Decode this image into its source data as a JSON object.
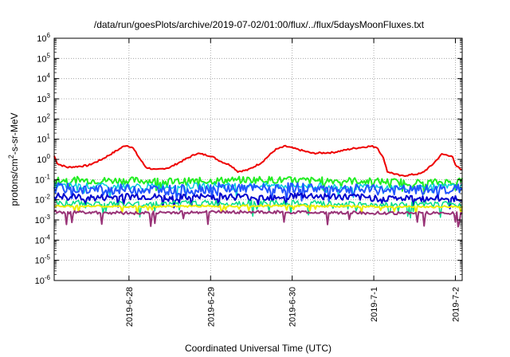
{
  "chart_data": {
    "type": "line",
    "title": "/data/run/goesPlots/archive/2019-07-02/01:00/flux/../flux/5daysMoonFluxes.txt",
    "xlabel": "Coordinated Universal Time (UTC)",
    "ylabel_parts": [
      "protons/cm",
      "2",
      "-s-sr-MeV"
    ],
    "yscale": "log",
    "ylim_exp": [
      -6,
      6
    ],
    "y_ticks": [
      {
        "base": "10",
        "exp": "-6"
      },
      {
        "base": "10",
        "exp": "-5"
      },
      {
        "base": "10",
        "exp": "-4"
      },
      {
        "base": "10",
        "exp": "-3"
      },
      {
        "base": "10",
        "exp": "-2"
      },
      {
        "base": "10",
        "exp": "-1"
      },
      {
        "base": "10",
        "exp": "0"
      },
      {
        "base": "10",
        "exp": "1"
      },
      {
        "base": "10",
        "exp": "2"
      },
      {
        "base": "10",
        "exp": "3"
      },
      {
        "base": "10",
        "exp": "4"
      },
      {
        "base": "10",
        "exp": "5"
      },
      {
        "base": "10",
        "exp": "6"
      }
    ],
    "xlim_days": [
      "2019-06-27 02:00",
      "2019-07-02 02:00"
    ],
    "x_ticks": [
      "2019-6-28",
      "2019-6-29",
      "2019-6-30",
      "2019-7-1",
      "2019-7-2"
    ],
    "x_tick_dates": [
      "2019-06-28",
      "2019-06-29",
      "2019-06-30",
      "2019-07-01",
      "2019-07-02"
    ],
    "grid": true,
    "legend": "none",
    "series": [
      {
        "color": "#ee0000",
        "width": 2,
        "noise": 0.08,
        "points": [
          [
            "2019-06-27 02:00",
            1.5
          ],
          [
            "2019-06-27 03:00",
            0.6
          ],
          [
            "2019-06-27 06:00",
            0.4
          ],
          [
            "2019-06-27 12:00",
            0.5
          ],
          [
            "2019-06-27 16:00",
            1.0
          ],
          [
            "2019-06-27 20:00",
            2.5
          ],
          [
            "2019-06-27 23:00",
            5.0
          ],
          [
            "2019-06-28 01:00",
            4.0
          ],
          [
            "2019-06-28 03:00",
            1.2
          ],
          [
            "2019-06-28 05:00",
            0.4
          ],
          [
            "2019-06-28 08:00",
            0.3
          ],
          [
            "2019-06-28 12:00",
            0.4
          ],
          [
            "2019-06-28 16:00",
            0.9
          ],
          [
            "2019-06-28 20:00",
            2.0
          ],
          [
            "2019-06-29 00:00",
            1.5
          ],
          [
            "2019-06-29 03:00",
            0.8
          ],
          [
            "2019-06-29 06:00",
            0.5
          ],
          [
            "2019-06-29 08:00",
            0.25
          ],
          [
            "2019-06-29 11:00",
            0.3
          ],
          [
            "2019-06-29 15:00",
            0.7
          ],
          [
            "2019-06-29 19:00",
            3.0
          ],
          [
            "2019-06-29 22:00",
            4.5
          ],
          [
            "2019-06-30 02:00",
            3.0
          ],
          [
            "2019-06-30 06:00",
            2.0
          ],
          [
            "2019-06-30 12:00",
            2.2
          ],
          [
            "2019-06-30 18:00",
            3.5
          ],
          [
            "2019-06-30 23:00",
            4.5
          ],
          [
            "2019-07-01 01:00",
            4.0
          ],
          [
            "2019-07-01 03:00",
            1.0
          ],
          [
            "2019-07-01 04:00",
            0.25
          ],
          [
            "2019-07-01 08:00",
            0.15
          ],
          [
            "2019-07-01 14:00",
            0.2
          ],
          [
            "2019-07-01 17:00",
            0.5
          ],
          [
            "2019-07-01 20:00",
            1.8
          ],
          [
            "2019-07-01 23:00",
            1.5
          ],
          [
            "2019-07-02 00:00",
            0.5
          ],
          [
            "2019-07-02 02:00",
            0.3
          ]
        ]
      },
      {
        "color": "#22ee22",
        "width": 2,
        "noise": 0.35,
        "dip": 0.25,
        "points": [
          [
            "2019-06-27 02:00",
            0.1
          ],
          [
            "2019-06-27 14:00",
            0.09
          ],
          [
            "2019-06-28 02:00",
            0.09
          ],
          [
            "2019-06-28 14:00",
            0.08
          ],
          [
            "2019-06-29 02:00",
            0.09
          ],
          [
            "2019-06-29 14:00",
            0.1
          ],
          [
            "2019-06-30 02:00",
            0.09
          ],
          [
            "2019-06-30 14:00",
            0.09
          ],
          [
            "2019-07-01 02:00",
            0.08
          ],
          [
            "2019-07-01 14:00",
            0.07
          ],
          [
            "2019-07-02 02:00",
            0.08
          ]
        ]
      },
      {
        "color": "#00ccdd",
        "width": 1.5,
        "noise": 0.3,
        "dip": 0.3,
        "points": [
          [
            "2019-06-27 02:00",
            0.05
          ],
          [
            "2019-06-28 02:00",
            0.045
          ],
          [
            "2019-06-29 02:00",
            0.05
          ],
          [
            "2019-06-30 02:00",
            0.05
          ],
          [
            "2019-07-01 02:00",
            0.04
          ],
          [
            "2019-07-02 02:00",
            0.045
          ]
        ]
      },
      {
        "color": "#2255ff",
        "width": 2,
        "noise": 0.5,
        "dip": 0.3,
        "points": [
          [
            "2019-06-27 02:00",
            0.04
          ],
          [
            "2019-06-27 14:00",
            0.03
          ],
          [
            "2019-06-28 02:00",
            0.035
          ],
          [
            "2019-06-28 14:00",
            0.03
          ],
          [
            "2019-06-29 02:00",
            0.04
          ],
          [
            "2019-06-29 14:00",
            0.035
          ],
          [
            "2019-06-30 02:00",
            0.04
          ],
          [
            "2019-06-30 14:00",
            0.035
          ],
          [
            "2019-07-01 02:00",
            0.03
          ],
          [
            "2019-07-01 14:00",
            0.03
          ],
          [
            "2019-07-02 02:00",
            0.035
          ]
        ]
      },
      {
        "color": "#0000cc",
        "width": 2,
        "noise": 0.35,
        "dip": 0.3,
        "points": [
          [
            "2019-06-27 02:00",
            0.015
          ],
          [
            "2019-06-27 14:00",
            0.012
          ],
          [
            "2019-06-28 02:00",
            0.015
          ],
          [
            "2019-06-28 14:00",
            0.012
          ],
          [
            "2019-06-29 02:00",
            0.015
          ],
          [
            "2019-06-29 14:00",
            0.013
          ],
          [
            "2019-06-30 02:00",
            0.016
          ],
          [
            "2019-06-30 14:00",
            0.014
          ],
          [
            "2019-07-01 02:00",
            0.012
          ],
          [
            "2019-07-01 14:00",
            0.011
          ],
          [
            "2019-07-02 02:00",
            0.012
          ]
        ]
      },
      {
        "color": "#00dd88",
        "width": 1.5,
        "noise": 0.3,
        "dip": 0.35,
        "points": [
          [
            "2019-06-27 02:00",
            0.007
          ],
          [
            "2019-06-28 02:00",
            0.006
          ],
          [
            "2019-06-29 02:00",
            0.007
          ],
          [
            "2019-06-30 02:00",
            0.0065
          ],
          [
            "2019-07-01 02:00",
            0.0055
          ],
          [
            "2019-07-02 02:00",
            0.006
          ]
        ]
      },
      {
        "color": "#eeee00",
        "width": 2,
        "noise": 0.1,
        "dip": 0.2,
        "points": [
          [
            "2019-06-27 02:00",
            0.005
          ],
          [
            "2019-06-28 02:00",
            0.0045
          ],
          [
            "2019-06-29 02:00",
            0.005
          ],
          [
            "2019-06-30 02:00",
            0.005
          ],
          [
            "2019-07-01 02:00",
            0.0045
          ],
          [
            "2019-07-02 02:00",
            0.0045
          ]
        ]
      },
      {
        "color": "#993377",
        "width": 2,
        "noise": 0.15,
        "dip": 0.45,
        "points": [
          [
            "2019-06-27 02:00",
            0.0025
          ],
          [
            "2019-06-28 02:00",
            0.0022
          ],
          [
            "2019-06-29 02:00",
            0.0025
          ],
          [
            "2019-06-30 02:00",
            0.0024
          ],
          [
            "2019-07-01 02:00",
            0.0022
          ],
          [
            "2019-07-02 02:00",
            0.0022
          ]
        ]
      }
    ]
  }
}
